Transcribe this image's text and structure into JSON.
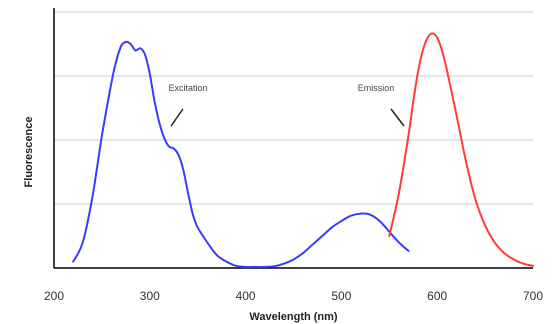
{
  "chart_data": {
    "type": "line",
    "xlabel": "Wavelength (nm)",
    "ylabel": "Fluorescence",
    "xlim": [
      200,
      700
    ],
    "xticks": [
      "200",
      "300",
      "400",
      "500",
      "600",
      "700"
    ],
    "ylim": [
      0,
      1.2
    ],
    "grid": "horizontal",
    "series": [
      {
        "label_text": "Excitation",
        "color": "#3b3bff",
        "x": [
          220,
          230,
          240,
          250,
          260,
          265,
          270,
          275,
          280,
          285,
          290,
          295,
          300,
          305,
          310,
          315,
          320,
          325,
          330,
          335,
          340,
          345,
          350,
          360,
          370,
          380,
          390,
          400,
          410,
          420,
          430,
          440,
          450,
          460,
          470,
          480,
          490,
          500,
          510,
          520,
          530,
          540,
          550,
          560,
          570
        ],
        "y": [
          0.03,
          0.12,
          0.33,
          0.62,
          0.87,
          0.97,
          1.04,
          1.06,
          1.05,
          1.02,
          1.03,
          1.0,
          0.91,
          0.78,
          0.68,
          0.61,
          0.57,
          0.56,
          0.53,
          0.46,
          0.35,
          0.25,
          0.19,
          0.12,
          0.06,
          0.03,
          0.01,
          0.005,
          0.005,
          0.005,
          0.008,
          0.02,
          0.04,
          0.07,
          0.11,
          0.15,
          0.19,
          0.22,
          0.245,
          0.255,
          0.25,
          0.22,
          0.17,
          0.12,
          0.08
        ]
      },
      {
        "label_text": "Emission",
        "color": "#ff3b3b",
        "x": [
          550,
          560,
          570,
          575,
          580,
          585,
          590,
          595,
          600,
          605,
          610,
          620,
          630,
          640,
          650,
          660,
          670,
          680,
          690,
          700
        ],
        "y": [
          0.15,
          0.35,
          0.62,
          0.78,
          0.92,
          1.02,
          1.08,
          1.1,
          1.08,
          1.02,
          0.93,
          0.72,
          0.5,
          0.32,
          0.2,
          0.12,
          0.07,
          0.04,
          0.02,
          0.01
        ]
      }
    ]
  }
}
